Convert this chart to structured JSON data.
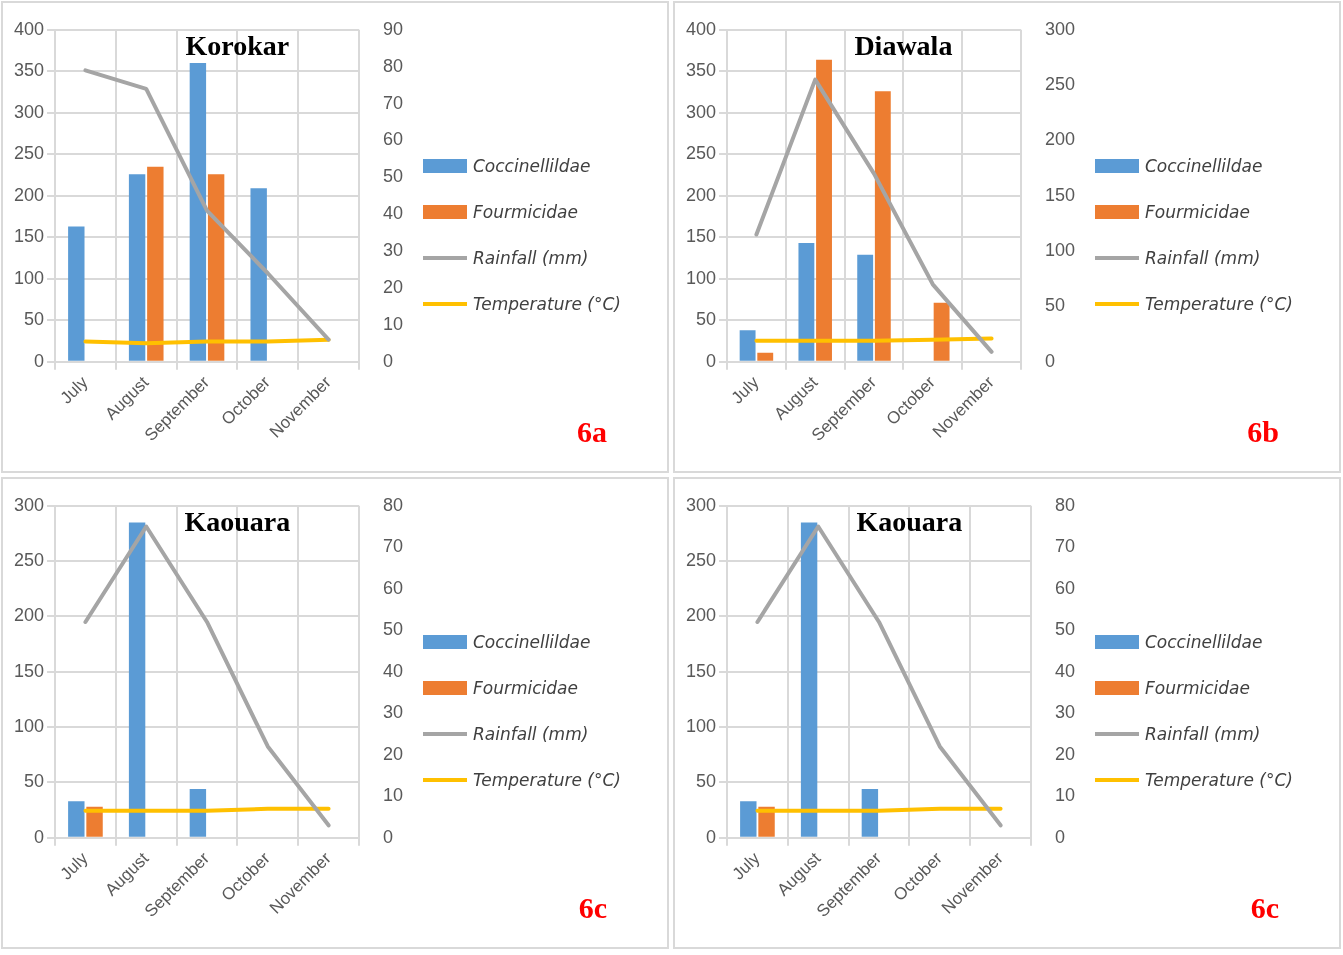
{
  "chart_data": [
    {
      "type": "bar",
      "title": "Korokar",
      "categories": [
        "July",
        "August",
        "September",
        "October",
        "November"
      ],
      "ylim": [
        0,
        400
      ],
      "yticks": [
        0,
        50,
        100,
        150,
        200,
        250,
        300,
        350,
        400
      ],
      "y2lim": [
        0,
        90
      ],
      "y2ticks": [
        0,
        10,
        20,
        30,
        40,
        50,
        60,
        70,
        80,
        90
      ],
      "grid": true,
      "legend": "right",
      "annotations": [
        "6a"
      ],
      "series": [
        {
          "name": "Coccinellildae",
          "color": "#5b9bd5",
          "values": [
            163,
            226,
            360,
            209,
            0
          ]
        },
        {
          "name": "Fourmicidae",
          "color": "#ed7d31",
          "values": [
            0,
            235,
            226,
            0,
            0
          ]
        },
        {
          "name": "Rainfall (mm)",
          "type": "line",
          "axis": "y2",
          "color": "#a5a5a5",
          "values": [
            79,
            74,
            41,
            24,
            6
          ]
        },
        {
          "name": "Temperature (°C)",
          "type": "line",
          "axis": "y2",
          "color": "#ffc000",
          "values": [
            5.5,
            5,
            5.5,
            5.5,
            6
          ]
        }
      ]
    },
    {
      "type": "bar",
      "title": "Diawala",
      "categories": [
        "July",
        "August",
        "September",
        "October",
        "November"
      ],
      "ylim": [
        0,
        400
      ],
      "yticks": [
        0,
        50,
        100,
        150,
        200,
        250,
        300,
        350,
        400
      ],
      "y2lim": [
        0,
        300
      ],
      "y2ticks": [
        0,
        50,
        100,
        150,
        200,
        250,
        300
      ],
      "grid": true,
      "legend": "right",
      "annotations": [
        "6b"
      ],
      "series": [
        {
          "name": "Coccinellildae",
          "color": "#5b9bd5",
          "values": [
            38,
            143,
            129,
            null,
            0
          ]
        },
        {
          "name": "Fourmicidae",
          "color": "#ed7d31",
          "values": [
            11,
            364,
            326,
            71,
            0
          ]
        },
        {
          "name": "Rainfall (mm)",
          "type": "line",
          "axis": "y2",
          "color": "#a5a5a5",
          "values": [
            115,
            255,
            170,
            70,
            9
          ]
        },
        {
          "name": "Temperature (°C)",
          "type": "line",
          "axis": "y2",
          "color": "#ffc000",
          "values": [
            19,
            19,
            19,
            20,
            21
          ]
        }
      ]
    },
    {
      "type": "bar",
      "title": "Kaouara",
      "categories": [
        "July",
        "August",
        "September",
        "October",
        "November"
      ],
      "ylim": [
        0,
        300
      ],
      "yticks": [
        0,
        50,
        100,
        150,
        200,
        250,
        300
      ],
      "y2lim": [
        0,
        80
      ],
      "y2ticks": [
        0,
        10,
        20,
        30,
        40,
        50,
        60,
        70,
        80
      ],
      "grid": true,
      "legend": "right",
      "annotations": [
        "6c"
      ],
      "series": [
        {
          "name": "Coccinellildae",
          "color": "#5b9bd5",
          "values": [
            33,
            285,
            44,
            0,
            0
          ]
        },
        {
          "name": "Fourmicidae",
          "color": "#ed7d31",
          "values": [
            28,
            0,
            0,
            0,
            0
          ]
        },
        {
          "name": "Rainfall (mm)",
          "type": "line",
          "axis": "y2",
          "color": "#a5a5a5",
          "values": [
            52,
            75,
            52,
            22,
            3
          ]
        },
        {
          "name": "Temperature (°C)",
          "type": "line",
          "axis": "y2",
          "color": "#ffc000",
          "values": [
            6.5,
            6.5,
            6.5,
            7,
            7
          ]
        }
      ]
    },
    {
      "type": "bar",
      "title": "Kaouara",
      "categories": [
        "July",
        "August",
        "September",
        "October",
        "November"
      ],
      "ylim": [
        0,
        300
      ],
      "yticks": [
        0,
        50,
        100,
        150,
        200,
        250,
        300
      ],
      "y2lim": [
        0,
        80
      ],
      "y2ticks": [
        0,
        10,
        20,
        30,
        40,
        50,
        60,
        70,
        80
      ],
      "grid": true,
      "legend": "right",
      "annotations": [
        "6c"
      ],
      "series": [
        {
          "name": "Coccinellildae",
          "color": "#5b9bd5",
          "values": [
            33,
            285,
            44,
            0,
            0
          ]
        },
        {
          "name": "Fourmicidae",
          "color": "#ed7d31",
          "values": [
            28,
            0,
            0,
            0,
            0
          ]
        },
        {
          "name": "Rainfall (mm)",
          "type": "line",
          "axis": "y2",
          "color": "#a5a5a5",
          "values": [
            52,
            75,
            52,
            22,
            3
          ]
        },
        {
          "name": "Temperature (°C)",
          "type": "line",
          "axis": "y2",
          "color": "#ffc000",
          "values": [
            6.5,
            6.5,
            6.5,
            7,
            7
          ]
        }
      ]
    }
  ]
}
